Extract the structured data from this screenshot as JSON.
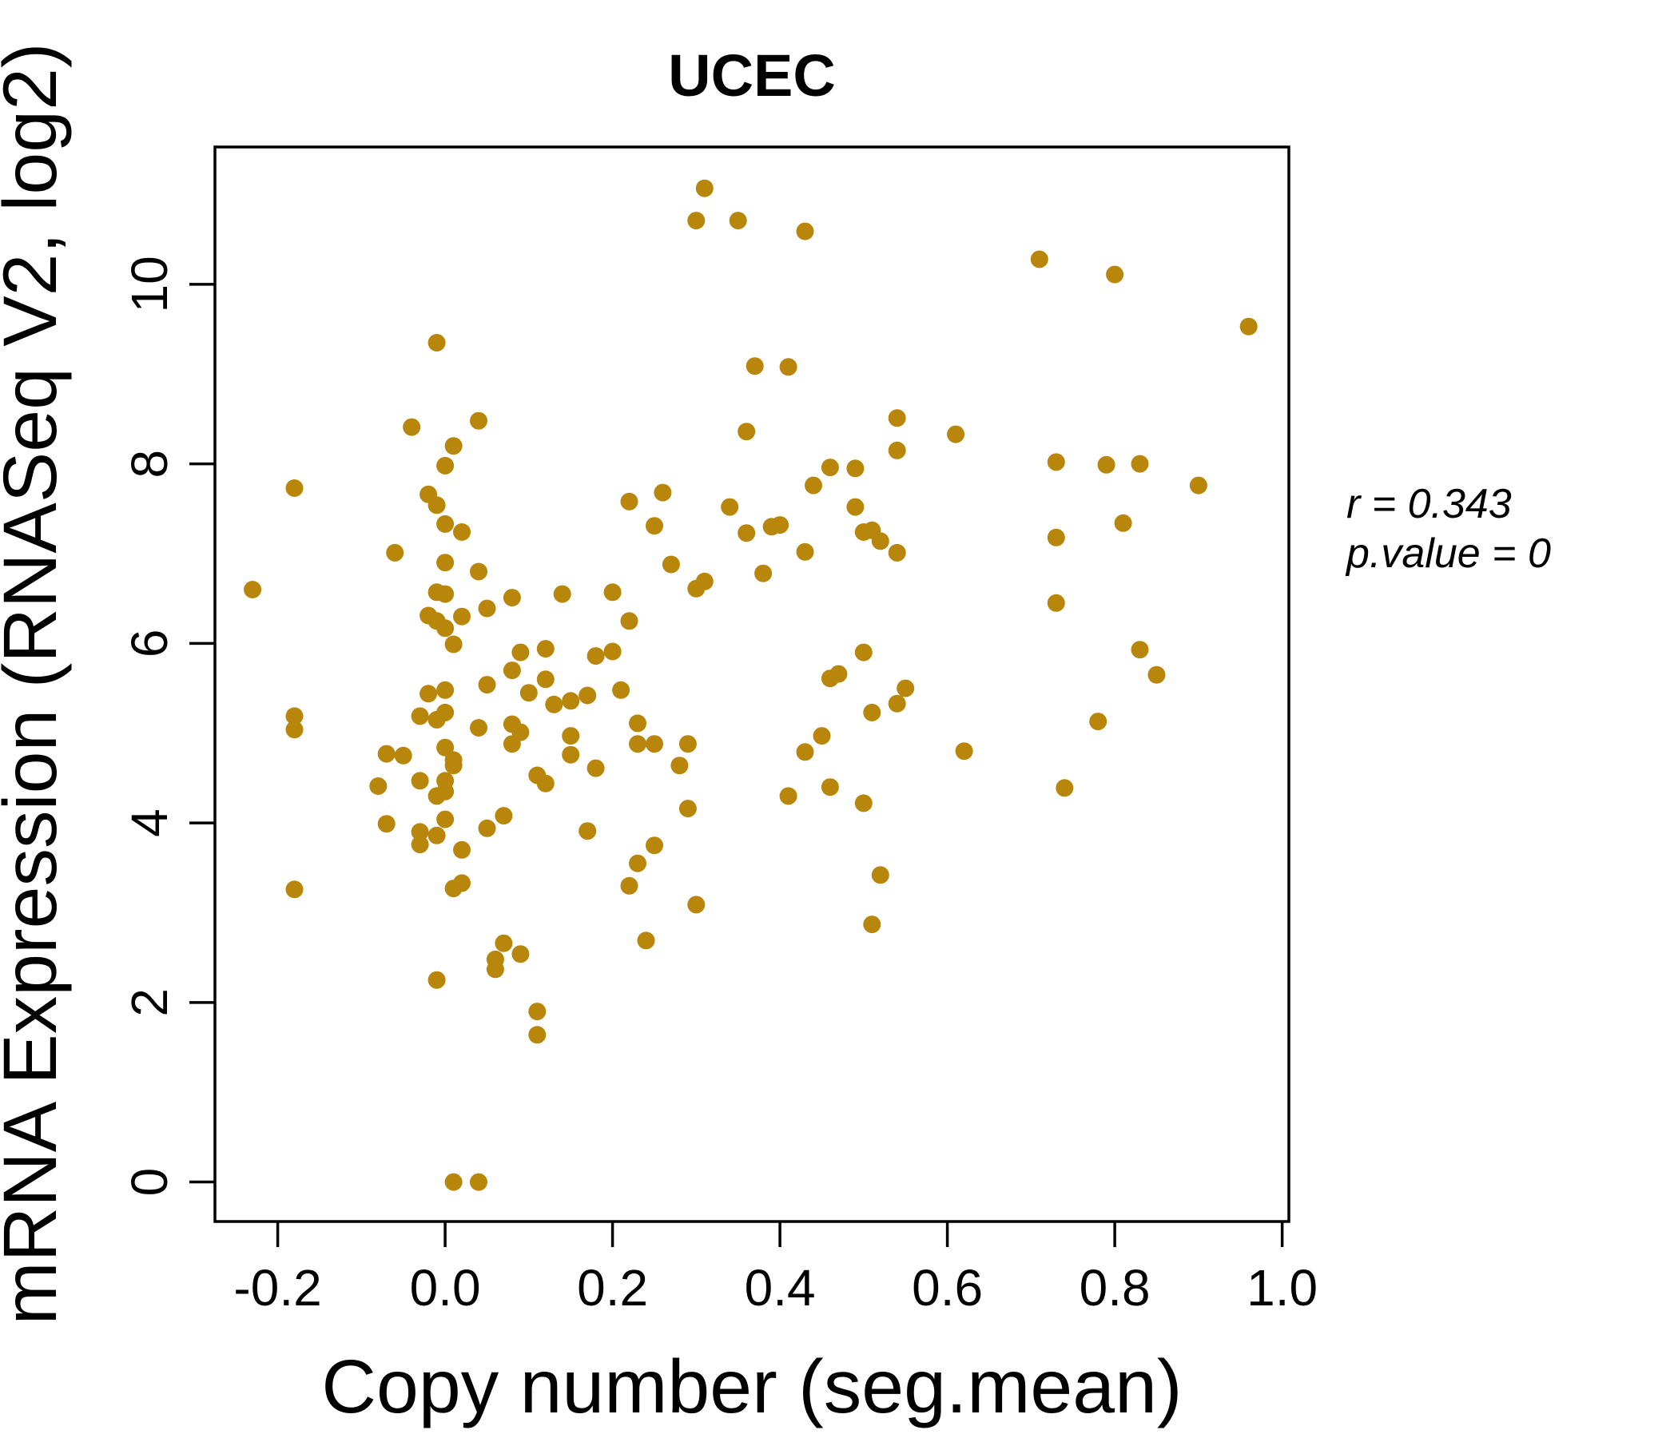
{
  "chart_data": {
    "type": "scatter",
    "title": "UCEC",
    "xlabel": "Copy number (seg.mean)",
    "ylabel": "mRNA Expression (RNASeq V2, log2)",
    "x_tick_labels": [
      "-0.2",
      "0.0",
      "0.2",
      "0.4",
      "0.6",
      "0.8",
      "1.0"
    ],
    "x_tick_values": [
      -0.2,
      0.0,
      0.2,
      0.4,
      0.6,
      0.8,
      1.0
    ],
    "y_tick_labels": [
      "0",
      "2",
      "4",
      "6",
      "8",
      "10"
    ],
    "y_tick_values": [
      0,
      2,
      4,
      6,
      8,
      10
    ],
    "xlim": [
      -0.275,
      1.008
    ],
    "ylim": [
      -0.44,
      11.53
    ],
    "grid": false,
    "legend": "none",
    "annotations": [
      "r = 0.343",
      "p.value = 0"
    ],
    "title_color": "#B8860B",
    "point_color": "#B8860B",
    "axis_color": "#000000",
    "points": [
      [
        -0.01,
        9.35
      ],
      [
        -0.04,
        8.41
      ],
      [
        0.04,
        8.48
      ],
      [
        0.01,
        8.2
      ],
      [
        0.0,
        7.98
      ],
      [
        -0.18,
        7.73
      ],
      [
        -0.02,
        7.66
      ],
      [
        -0.01,
        7.54
      ],
      [
        0.31,
        11.07
      ],
      [
        0.3,
        10.71
      ],
      [
        0.35,
        10.71
      ],
      [
        0.43,
        10.59
      ],
      [
        0.37,
        9.09
      ],
      [
        0.41,
        9.08
      ],
      [
        0.36,
        8.36
      ],
      [
        0.54,
        8.51
      ],
      [
        0.54,
        8.15
      ],
      [
        0.46,
        7.96
      ],
      [
        0.49,
        7.95
      ],
      [
        0.44,
        7.76
      ],
      [
        0.22,
        7.58
      ],
      [
        0.26,
        7.68
      ],
      [
        0.71,
        10.28
      ],
      [
        0.8,
        10.11
      ],
      [
        0.96,
        9.53
      ],
      [
        0.61,
        8.33
      ],
      [
        0.73,
        8.02
      ],
      [
        0.79,
        7.99
      ],
      [
        0.83,
        8.0
      ],
      [
        0.9,
        7.76
      ],
      [
        0.0,
        7.33
      ],
      [
        0.02,
        7.24
      ],
      [
        -0.06,
        7.01
      ],
      [
        0.0,
        6.9
      ],
      [
        0.04,
        6.8
      ],
      [
        -0.23,
        6.6
      ],
      [
        -0.01,
        6.57
      ],
      [
        0.0,
        6.55
      ],
      [
        0.05,
        6.39
      ],
      [
        0.08,
        6.51
      ],
      [
        0.14,
        6.55
      ],
      [
        -0.02,
        6.31
      ],
      [
        -0.01,
        6.25
      ],
      [
        0.02,
        6.3
      ],
      [
        0.0,
        6.17
      ],
      [
        0.01,
        5.99
      ],
      [
        0.09,
        5.9
      ],
      [
        0.12,
        5.94
      ],
      [
        0.08,
        5.7
      ],
      [
        0.12,
        5.6
      ],
      [
        0.05,
        5.54
      ],
      [
        0.0,
        5.48
      ],
      [
        -0.02,
        5.44
      ],
      [
        0.1,
        5.45
      ],
      [
        0.13,
        5.32
      ],
      [
        -0.03,
        5.19
      ],
      [
        -0.01,
        5.15
      ],
      [
        0.0,
        5.23
      ],
      [
        -0.18,
        5.19
      ],
      [
        -0.18,
        5.04
      ],
      [
        0.04,
        5.06
      ],
      [
        0.08,
        5.1
      ],
      [
        0.09,
        5.01
      ],
      [
        0.08,
        4.88
      ],
      [
        -0.07,
        4.77
      ],
      [
        -0.05,
        4.75
      ],
      [
        0.0,
        4.84
      ],
      [
        0.01,
        4.7
      ],
      [
        0.11,
        4.53
      ],
      [
        0.12,
        4.44
      ],
      [
        -0.08,
        4.41
      ],
      [
        -0.03,
        4.47
      ],
      [
        0.0,
        4.47
      ],
      [
        0.0,
        4.35
      ],
      [
        -0.01,
        4.3
      ],
      [
        0.01,
        4.64
      ],
      [
        -0.07,
        3.99
      ],
      [
        -0.03,
        3.9
      ],
      [
        -0.03,
        3.76
      ],
      [
        -0.01,
        3.86
      ],
      [
        0.0,
        4.04
      ],
      [
        0.02,
        3.7
      ],
      [
        0.05,
        3.94
      ],
      [
        0.07,
        4.08
      ],
      [
        0.25,
        7.31
      ],
      [
        0.36,
        7.23
      ],
      [
        0.39,
        7.3
      ],
      [
        0.4,
        7.32
      ],
      [
        0.43,
        7.02
      ],
      [
        0.5,
        7.24
      ],
      [
        0.51,
        7.26
      ],
      [
        0.52,
        7.14
      ],
      [
        0.54,
        7.01
      ],
      [
        0.27,
        6.88
      ],
      [
        0.38,
        6.78
      ],
      [
        0.31,
        6.69
      ],
      [
        0.3,
        6.61
      ],
      [
        0.2,
        6.57
      ],
      [
        0.22,
        6.25
      ],
      [
        0.18,
        5.86
      ],
      [
        0.2,
        5.91
      ],
      [
        0.5,
        5.9
      ],
      [
        0.47,
        5.66
      ],
      [
        0.46,
        5.61
      ],
      [
        0.17,
        5.42
      ],
      [
        0.21,
        5.48
      ],
      [
        0.55,
        5.5
      ],
      [
        0.54,
        5.33
      ],
      [
        0.51,
        5.23
      ],
      [
        0.23,
        5.11
      ],
      [
        0.23,
        4.88
      ],
      [
        0.25,
        4.88
      ],
      [
        0.29,
        4.88
      ],
      [
        0.45,
        4.97
      ],
      [
        0.43,
        4.79
      ],
      [
        0.15,
        4.97
      ],
      [
        0.15,
        4.76
      ],
      [
        0.15,
        5.36
      ],
      [
        0.18,
        4.61
      ],
      [
        0.28,
        4.64
      ],
      [
        0.46,
        4.4
      ],
      [
        0.41,
        4.3
      ],
      [
        0.5,
        4.22
      ],
      [
        0.29,
        4.16
      ],
      [
        0.17,
        3.91
      ],
      [
        0.25,
        3.75
      ],
      [
        0.23,
        3.55
      ],
      [
        0.34,
        7.52
      ],
      [
        0.49,
        7.52
      ],
      [
        0.81,
        7.34
      ],
      [
        0.73,
        7.18
      ],
      [
        0.73,
        6.45
      ],
      [
        0.83,
        5.93
      ],
      [
        0.85,
        5.65
      ],
      [
        0.78,
        5.13
      ],
      [
        0.62,
        4.8
      ],
      [
        0.74,
        4.39
      ],
      [
        -0.18,
        3.26
      ],
      [
        0.01,
        3.27
      ],
      [
        0.02,
        3.33
      ],
      [
        0.07,
        2.66
      ],
      [
        0.06,
        2.48
      ],
      [
        0.06,
        2.37
      ],
      [
        0.09,
        2.54
      ],
      [
        -0.01,
        2.25
      ],
      [
        0.11,
        1.9
      ],
      [
        0.11,
        1.64
      ],
      [
        0.01,
        0.0
      ],
      [
        0.04,
        0.0
      ],
      [
        0.22,
        3.3
      ],
      [
        0.3,
        3.09
      ],
      [
        0.24,
        2.69
      ],
      [
        0.52,
        3.42
      ],
      [
        0.51,
        2.87
      ]
    ]
  }
}
